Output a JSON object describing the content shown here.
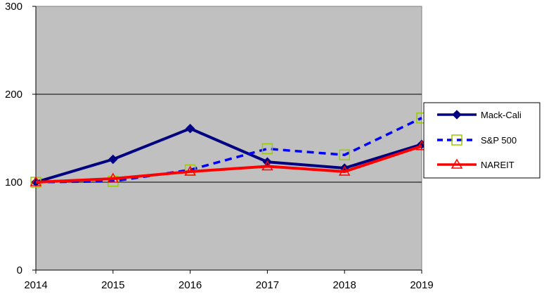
{
  "chart_data": {
    "type": "line",
    "title": "",
    "xlabel": "",
    "ylabel": "",
    "x": [
      2014,
      2015,
      2016,
      2017,
      2018,
      2019
    ],
    "x_tick_labels": [
      "2014",
      "2015",
      "2016",
      "2017",
      "2018",
      "2019"
    ],
    "ylim": [
      0,
      300
    ],
    "y_ticks": [
      0,
      100,
      200,
      300
    ],
    "y_tick_labels": [
      "0",
      "100",
      "200",
      "300"
    ],
    "grid": "horizontal",
    "plot_background": "#c0c0c0",
    "legend_position": "right",
    "series": [
      {
        "name": "Mack-Cali",
        "values": [
          100,
          126,
          161,
          123,
          116,
          143
        ],
        "color": "#000080",
        "line_style": "solid",
        "marker": "diamond-filled"
      },
      {
        "name": "S&P 500",
        "values": [
          100,
          101,
          114,
          138,
          131,
          173
        ],
        "color": "#0000ff",
        "line_style": "dashed",
        "marker": "square-open",
        "marker_color": "#99cc00"
      },
      {
        "name": "NAREIT",
        "values": [
          100,
          104,
          112,
          118,
          112,
          141
        ],
        "color": "#ff0000",
        "line_style": "solid",
        "marker": "triangle-open"
      }
    ]
  }
}
